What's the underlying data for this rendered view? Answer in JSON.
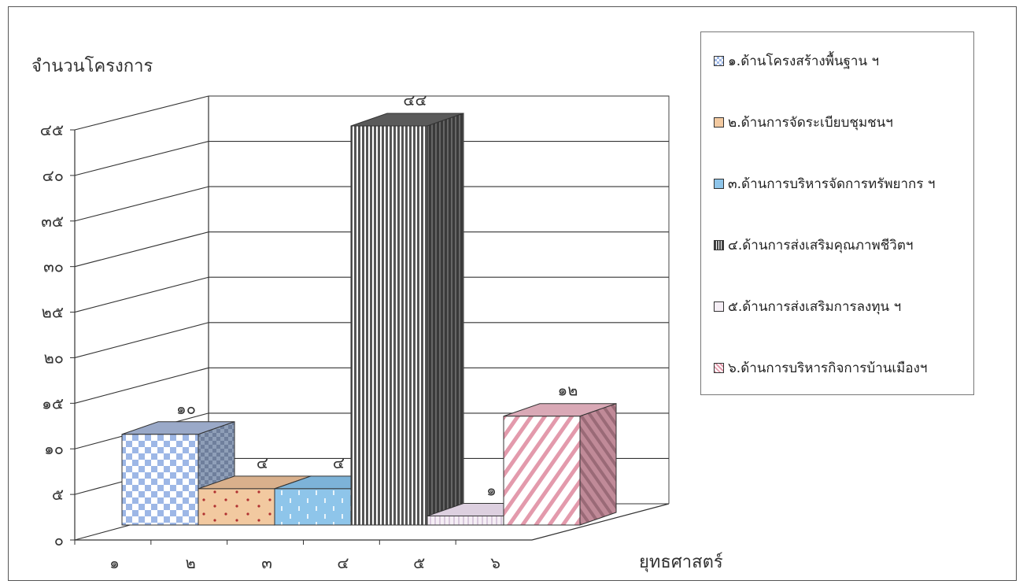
{
  "chart_data": {
    "type": "bar",
    "ylabel": "จำนวนโครงการ",
    "xlabel": "ยุทธศาสตร์",
    "ylim": [
      0,
      45
    ],
    "yticks": [
      "๐",
      "๕",
      "๑๐",
      "๑๕",
      "๒๐",
      "๒๕",
      "๓๐",
      "๓๕",
      "๔๐",
      "๔๕"
    ],
    "categories": [
      "๑",
      "๒",
      "๓",
      "๔",
      "๕",
      "๖"
    ],
    "values": [
      10,
      4,
      4,
      44,
      1,
      12
    ],
    "data_labels": [
      "๑๐",
      "๔",
      "๔",
      "๔๔",
      "๑",
      "๑๒"
    ],
    "grid": true,
    "legend_position": "right",
    "series": [
      {
        "name": "๑.ด้านโครงสร้างพื้นฐาน ฯ",
        "color": "#a8bfe8",
        "pattern": "checker",
        "icon": "checker-icon"
      },
      {
        "name": "๒.ด้านการจัดระเบียบชุมชนฯ",
        "color": "#f2c9a0",
        "pattern": "dots",
        "icon": "dots-icon"
      },
      {
        "name": "๓.ด้านการบริหารจัดการทรัพยากร ฯ",
        "color": "#8ec5ea",
        "pattern": "dashes",
        "icon": "dash-icon"
      },
      {
        "name": "๔.ด้านการส่งเสริมคุณภาพชีวิตฯ",
        "color": "#666666",
        "pattern": "vstripes",
        "icon": "stripe-icon"
      },
      {
        "name": "๕.ด้านการส่งเสริมการลงทุน ฯ",
        "color": "#efe4f0",
        "pattern": "light",
        "icon": "light-icon"
      },
      {
        "name": "๖.ด้านการบริหารกิจการบ้านเมืองฯ",
        "color": "#e8a0b0",
        "pattern": "diagonal",
        "icon": "diagonal-icon"
      }
    ]
  }
}
